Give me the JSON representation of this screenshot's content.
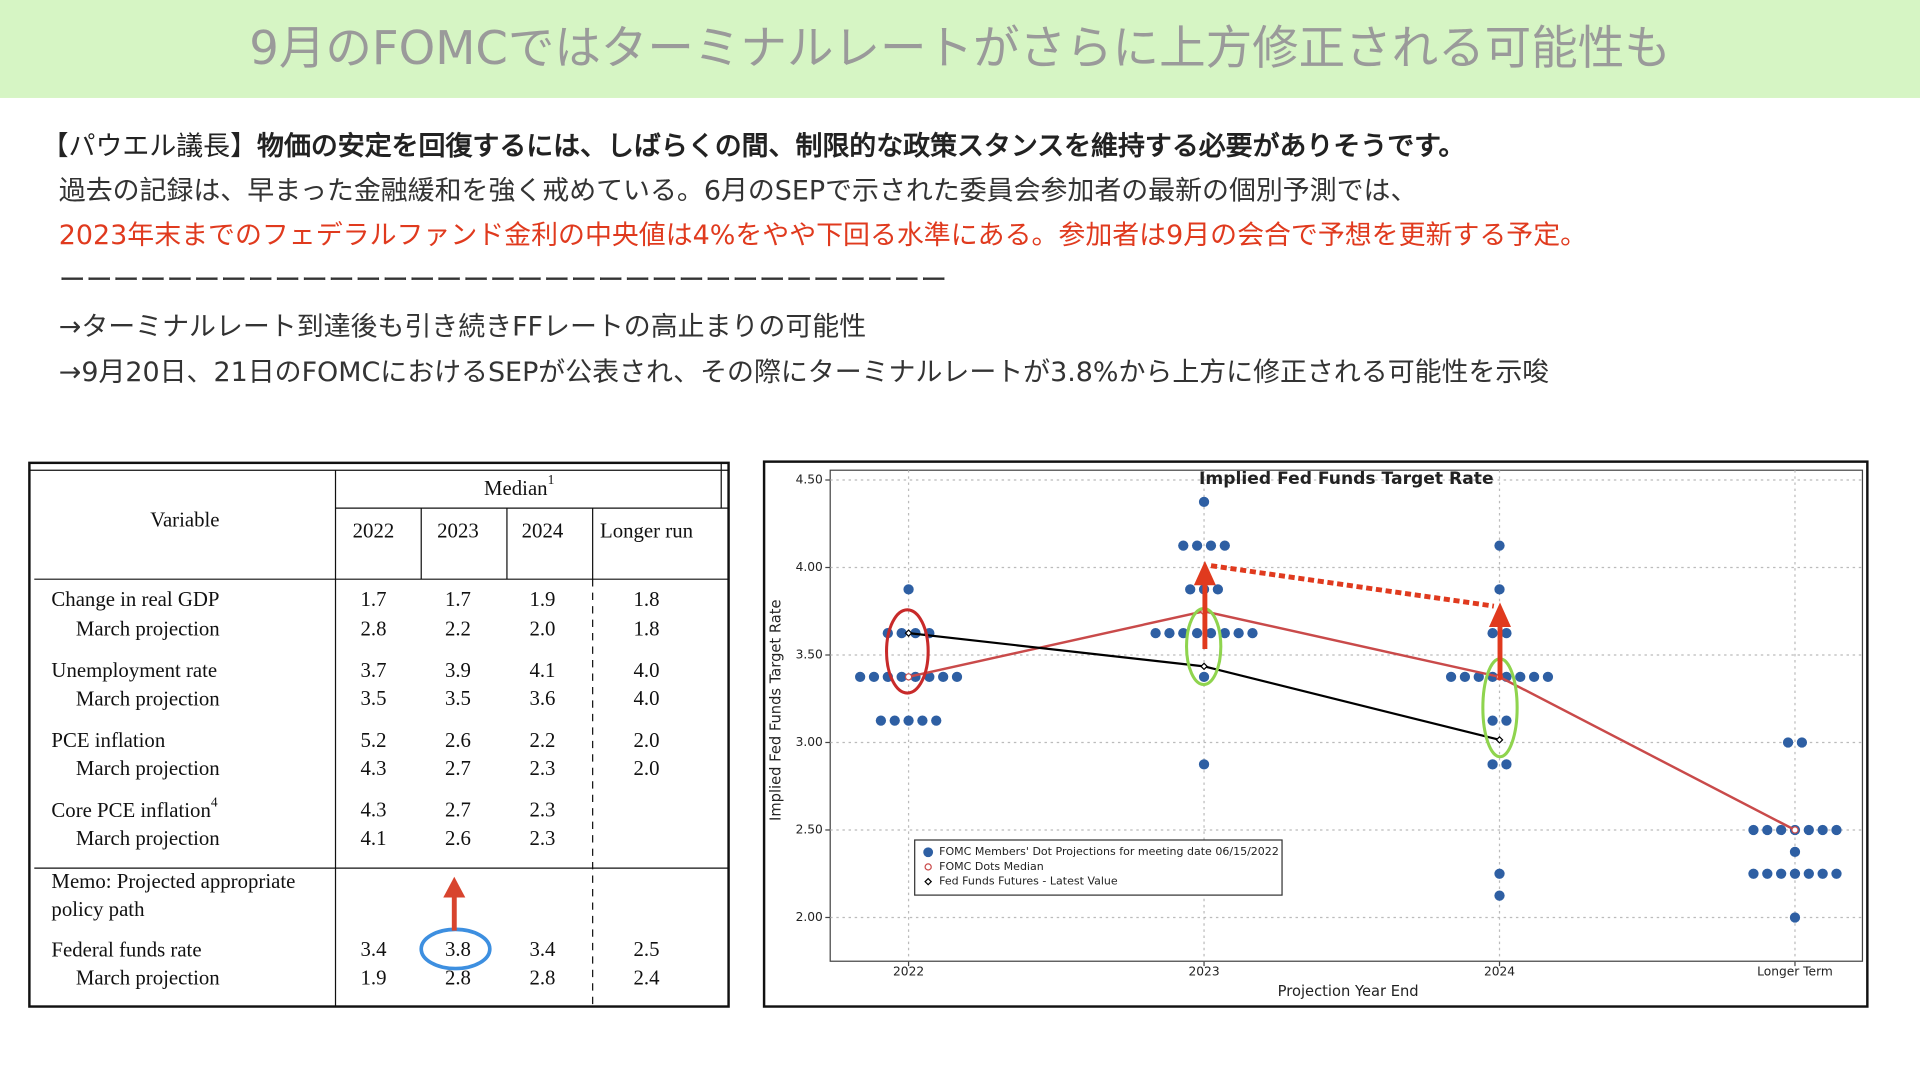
{
  "header": {
    "title": "9月のFOMCではターミナルレートがさらに上方修正される可能性も"
  },
  "body": {
    "speaker": "【パウエル議長】",
    "statement": "物価の安定を回復するには、しばらくの間、制限的な政策スタンスを維持する必要がありそうです。",
    "lines": [
      "過去の記録は、早まった金融緩和を強く戒めている。6月のSEPで示された委員会参加者の最新の個別予測では、",
      "2023年末までのフェデラルファンド金利の中央値は4%をやや下回る水準にある。参加者は9月の会合で予想を更新する予定。",
      "ーーーーーーーーーーーーーーーーーーーーーーーーーーーーーーーーー",
      "→ターミナルレート到達後も引き続きFFレートの高止まりの可能性",
      "→9月20日、21日のFOMCにおけるSEPが公表され、その際にターミナルレートが3.8%から上方に修正される可能性を示唆"
    ]
  },
  "table": {
    "header": "Variable",
    "group_header": "Median",
    "group_note": "1",
    "columns": [
      "2022",
      "2023",
      "2024",
      "Longer run"
    ],
    "rows": [
      {
        "label": "Change in real GDP",
        "values": [
          "1.7",
          "1.7",
          "1.9",
          "1.8"
        ]
      },
      {
        "label": "March projection",
        "values": [
          "2.8",
          "2.2",
          "2.0",
          "1.8"
        ]
      },
      {
        "label": "Unemployment rate",
        "values": [
          "3.7",
          "3.9",
          "4.1",
          "4.0"
        ]
      },
      {
        "label": "March projection",
        "values": [
          "3.5",
          "3.5",
          "3.6",
          "4.0"
        ]
      },
      {
        "label": "PCE inflation",
        "values": [
          "5.2",
          "2.6",
          "2.2",
          "2.0"
        ]
      },
      {
        "label": "March projection",
        "values": [
          "4.3",
          "2.7",
          "2.3",
          "2.0"
        ]
      },
      {
        "label": "Core PCE inflation",
        "note": "4",
        "values": [
          "4.3",
          "2.7",
          "2.3"
        ]
      },
      {
        "label": "March projection",
        "values": [
          "4.1",
          "2.6",
          "2.3"
        ]
      },
      {
        "label": "Memo: Projected appropriate policy path",
        "values": []
      },
      {
        "label": "Federal funds rate",
        "values": [
          "3.4",
          "3.8",
          "3.4",
          "2.5"
        ]
      },
      {
        "label": "March projection",
        "values": [
          "1.9",
          "2.8",
          "2.8",
          "2.4"
        ]
      }
    ]
  },
  "chart_data": {
    "type": "dot",
    "title": "Implied Fed Funds Target Rate",
    "y_label": "Implied Fed Funds Target Rate",
    "x_label": "Projection Year End",
    "categories": [
      "2022",
      "2023",
      "2024",
      "Longer Term"
    ],
    "ylim": [
      1.75,
      4.556
    ],
    "yticks": [
      {
        "value": 4.5,
        "label": "4.50"
      },
      {
        "value": 4,
        "label": "4.00"
      },
      {
        "value": 3.5,
        "label": "3.50"
      },
      {
        "value": 3,
        "label": "3.00"
      },
      {
        "value": 2.5,
        "label": "2.50"
      },
      {
        "value": 2,
        "label": "2.00"
      }
    ],
    "grid": true,
    "dots": {
      "name": "FOMC Members' Dot Projections for meeting date 06/15/2022",
      "color": "#2e5fa3",
      "values": [
        [
          3.875,
          3.625,
          3.625,
          3.625,
          3.625,
          3.375,
          3.375,
          3.375,
          3.375,
          3.375,
          3.375,
          3.375,
          3.375,
          3.125,
          3.125,
          3.125,
          3.125,
          3.125
        ],
        [
          4.375,
          4.125,
          4.125,
          4.125,
          4.125,
          3.875,
          3.875,
          3.875,
          3.625,
          3.625,
          3.625,
          3.625,
          3.625,
          3.625,
          3.625,
          3.625,
          3.375,
          2.875
        ],
        [
          4.125,
          3.875,
          3.625,
          3.625,
          3.375,
          3.375,
          3.375,
          3.375,
          3.375,
          3.375,
          3.375,
          3.375,
          3.125,
          3.125,
          2.875,
          2.875,
          2.25,
          2.125
        ],
        [
          3,
          3,
          2.5,
          2.5,
          2.5,
          2.5,
          2.5,
          2.5,
          2.5,
          2.375,
          2.25,
          2.25,
          2.25,
          2.25,
          2.25,
          2.25,
          2.25,
          2
        ]
      ]
    },
    "series": [
      {
        "name": "FOMC Dots Median",
        "color": "#c94a4a",
        "values": [
          3.375,
          3.75,
          3.375,
          2.5
        ]
      },
      {
        "name": "Fed Funds Futures - Latest Value",
        "color": "#000000",
        "values": [
          3.625,
          3.435,
          3.015,
          null
        ]
      }
    ]
  }
}
